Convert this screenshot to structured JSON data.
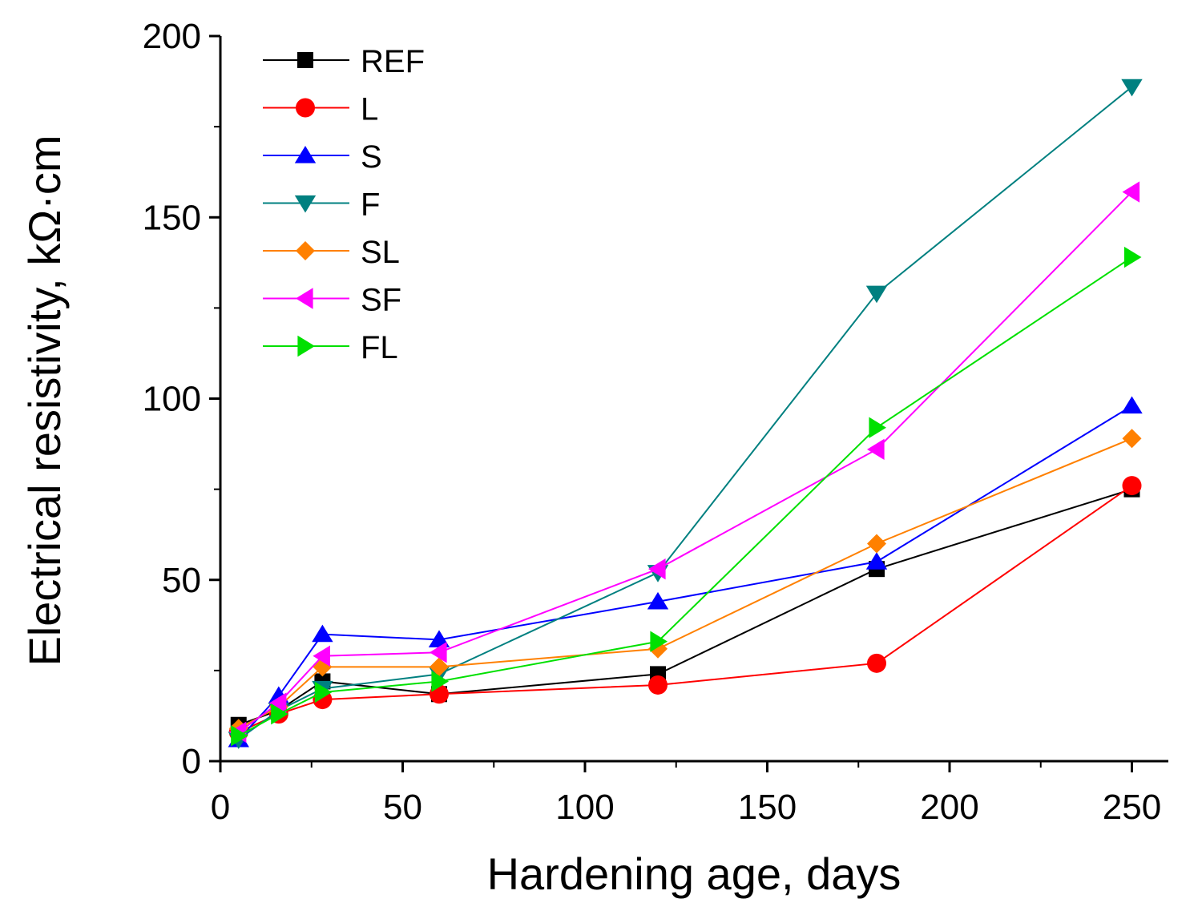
{
  "chart_data": {
    "type": "line",
    "title": "",
    "xlabel": "Hardening age, days",
    "ylabel": "Electrical resistivity, kΩ·cm",
    "xlim": [
      0,
      260
    ],
    "ylim": [
      0,
      200
    ],
    "xticks": [
      0,
      50,
      100,
      150,
      200,
      250
    ],
    "yticks": [
      0,
      50,
      100,
      150,
      200
    ],
    "grid": false,
    "legend_position": "top-left",
    "x": [
      5,
      16,
      28,
      60,
      120,
      180,
      250
    ],
    "series": [
      {
        "name": "REF",
        "color": "#000000",
        "marker": "square",
        "values": [
          10,
          14,
          22,
          18.5,
          24,
          53,
          75
        ]
      },
      {
        "name": "L",
        "color": "#ff0000",
        "marker": "circle",
        "values": [
          8,
          13,
          17,
          18.5,
          21,
          27,
          76
        ]
      },
      {
        "name": "S",
        "color": "#0000ff",
        "marker": "triangle-up",
        "values": [
          6,
          18,
          35,
          33.5,
          44,
          55,
          98
        ]
      },
      {
        "name": "F",
        "color": "#008080",
        "marker": "triangle-down",
        "values": [
          6,
          14,
          20,
          24,
          52,
          129,
          186
        ]
      },
      {
        "name": "SL",
        "color": "#ff8000",
        "marker": "diamond",
        "values": [
          9,
          15,
          26,
          26,
          31,
          60,
          89
        ]
      },
      {
        "name": "SF",
        "color": "#ff00ff",
        "marker": "triangle-left",
        "values": [
          8,
          16,
          29,
          30,
          53,
          86,
          157
        ]
      },
      {
        "name": "FL",
        "color": "#00e000",
        "marker": "triangle-right",
        "values": [
          7,
          13,
          19,
          22,
          33,
          92,
          139
        ]
      }
    ]
  }
}
